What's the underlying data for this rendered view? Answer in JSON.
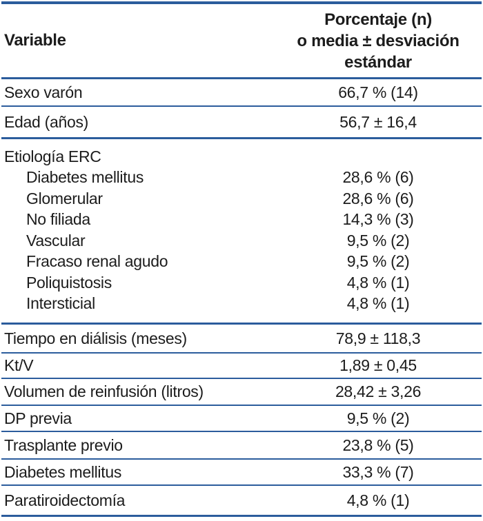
{
  "table": {
    "colors": {
      "rule_blue": "#2b5c9c",
      "text": "#1c1c1c"
    },
    "header": {
      "variable": "Variable",
      "value_lines": [
        "Porcentaje (n)",
        "o media ± desviación",
        "estándar"
      ]
    },
    "rows_top": [
      {
        "label": "Sexo varón",
        "value": "66,7 % (14)"
      },
      {
        "label": "Edad (años)",
        "value": "56,7 ± 16,4"
      }
    ],
    "etiologia": {
      "label": "Etiología ERC",
      "items": [
        {
          "label": "Diabetes mellitus",
          "value": "28,6 % (6)"
        },
        {
          "label": "Glomerular",
          "value": "28,6 % (6)"
        },
        {
          "label": "No filiada",
          "value": "14,3 % (3)"
        },
        {
          "label": "Vascular",
          "value": "9,5 % (2)"
        },
        {
          "label": "Fracaso renal agudo",
          "value": "9,5 % (2)"
        },
        {
          "label": "Poliquistosis",
          "value": "4,8 % (1)"
        },
        {
          "label": "Intersticial",
          "value": "4,8 % (1)"
        }
      ]
    },
    "rows_bottom": [
      {
        "label": "Tiempo en diálisis (meses)",
        "value": "78,9 ± 118,3"
      },
      {
        "label": "Kt/V",
        "value": "1,89 ± 0,45"
      },
      {
        "label": "Volumen de reinfusión (litros)",
        "value": "28,42 ± 3,26"
      },
      {
        "label": "DP previa",
        "value": "9,5 % (2)"
      },
      {
        "label": "Trasplante previo",
        "value": "23,8 % (5)"
      },
      {
        "label": "Diabetes mellitus",
        "value": "33,3 % (7)"
      },
      {
        "label": "Paratiroidectomía",
        "value": "4,8 % (1)"
      }
    ]
  }
}
